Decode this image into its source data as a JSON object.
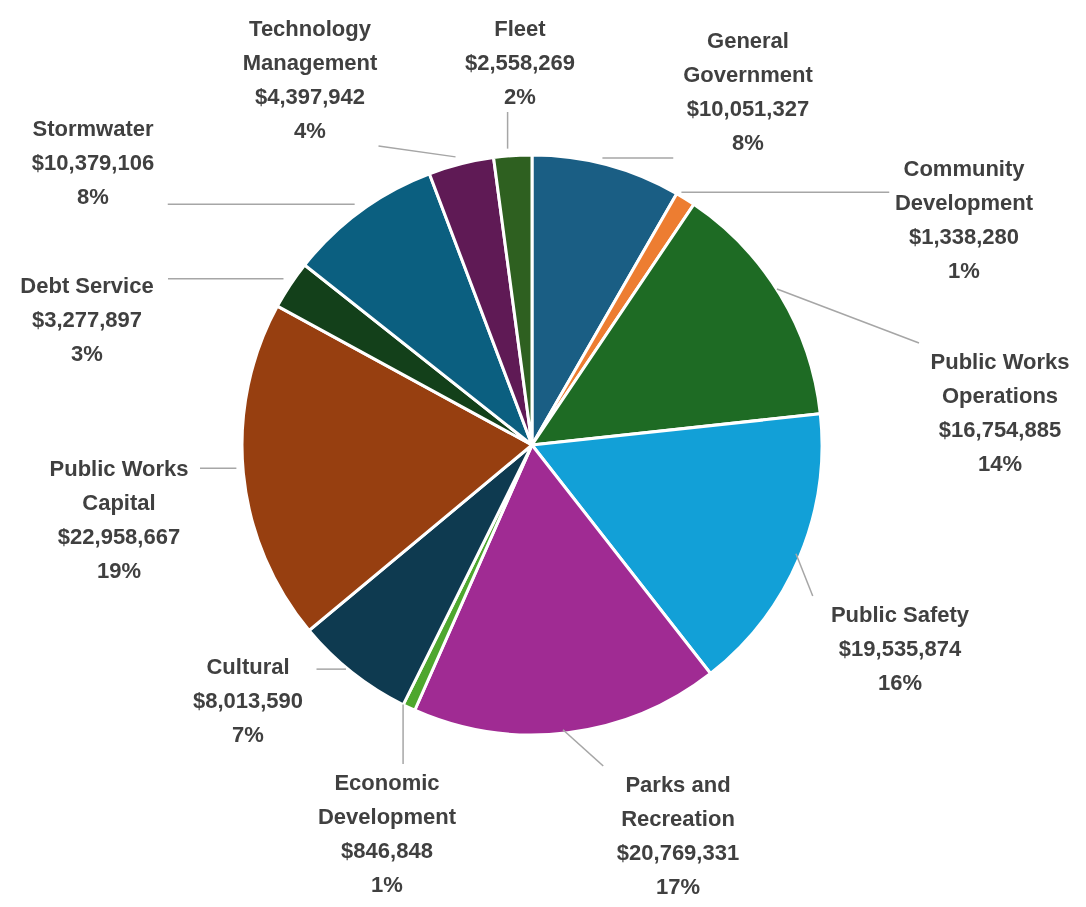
{
  "chart_data": {
    "type": "pie",
    "categories": [
      "General Government",
      "Community Development",
      "Public Works Operations",
      "Public Safety",
      "Parks and Recreation",
      "Economic Development",
      "Cultural",
      "Public Works Capital",
      "Debt Service",
      "Stormwater",
      "Technology Management",
      "Fleet"
    ],
    "values": [
      10051327,
      1338280,
      16754885,
      19535874,
      20769331,
      846848,
      8013590,
      22958667,
      3277897,
      10379106,
      4397942,
      2558269
    ],
    "colors": [
      "#1a5e84",
      "#ed7d31",
      "#1e6b24",
      "#12a0d7",
      "#a02b93",
      "#4ea72e",
      "#0e3a50",
      "#973f10",
      "#13401a",
      "#0b5f80",
      "#5f1a55",
      "#2e6020"
    ],
    "value_labels": [
      "$10,051,327\n8%",
      "$1,338,280\n1%",
      "$16,754,885\n14%",
      "$19,535,874\n16%",
      "$20,769,331\n17%",
      "$846,848\n1%",
      "$8,013,590\n7%",
      "$22,958,667\n19%",
      "$3,277,897\n3%",
      "$10,379,106\n8%",
      "$4,397,942\n4%",
      "$2,558,269\n2%"
    ],
    "legend": false
  }
}
